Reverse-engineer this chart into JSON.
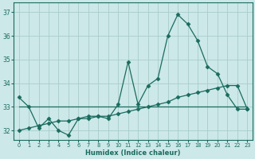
{
  "xlabel": "Humidex (Indice chaleur)",
  "background_color": "#cce8e8",
  "grid_color": "#aacccc",
  "line_color": "#1a6b5e",
  "xlim": [
    -0.5,
    23.5
  ],
  "ylim": [
    31.6,
    37.4
  ],
  "yticks": [
    32,
    33,
    34,
    35,
    36,
    37
  ],
  "xticks": [
    0,
    1,
    2,
    3,
    4,
    5,
    6,
    7,
    8,
    9,
    10,
    11,
    12,
    13,
    14,
    15,
    16,
    17,
    18,
    19,
    20,
    21,
    22,
    23
  ],
  "series1_x": [
    0,
    1,
    2,
    3,
    4,
    5,
    6,
    7,
    8,
    9,
    10,
    11,
    12,
    13,
    14,
    15,
    16,
    17,
    18,
    19,
    20,
    21,
    22,
    23
  ],
  "series1_y": [
    33.4,
    33.0,
    32.1,
    32.5,
    32.0,
    31.8,
    32.5,
    32.6,
    32.6,
    32.5,
    33.1,
    34.9,
    33.1,
    33.9,
    34.2,
    36.0,
    36.9,
    36.5,
    35.8,
    34.7,
    34.4,
    33.5,
    32.9,
    32.9
  ],
  "series2_x": [
    0,
    1,
    2,
    3,
    4,
    5,
    6,
    7,
    8,
    9,
    10,
    11,
    12,
    13,
    14,
    15,
    16,
    17,
    18,
    19,
    20,
    21,
    22,
    23
  ],
  "series2_y": [
    32.0,
    32.1,
    32.2,
    32.3,
    32.4,
    32.4,
    32.5,
    32.5,
    32.6,
    32.6,
    32.7,
    32.8,
    32.9,
    33.0,
    33.1,
    33.2,
    33.4,
    33.5,
    33.6,
    33.7,
    33.8,
    33.9,
    33.9,
    32.9
  ],
  "series3_x": [
    0,
    23
  ],
  "series3_y": [
    33.0,
    33.0
  ],
  "markersize": 2.5,
  "linewidth": 0.9
}
